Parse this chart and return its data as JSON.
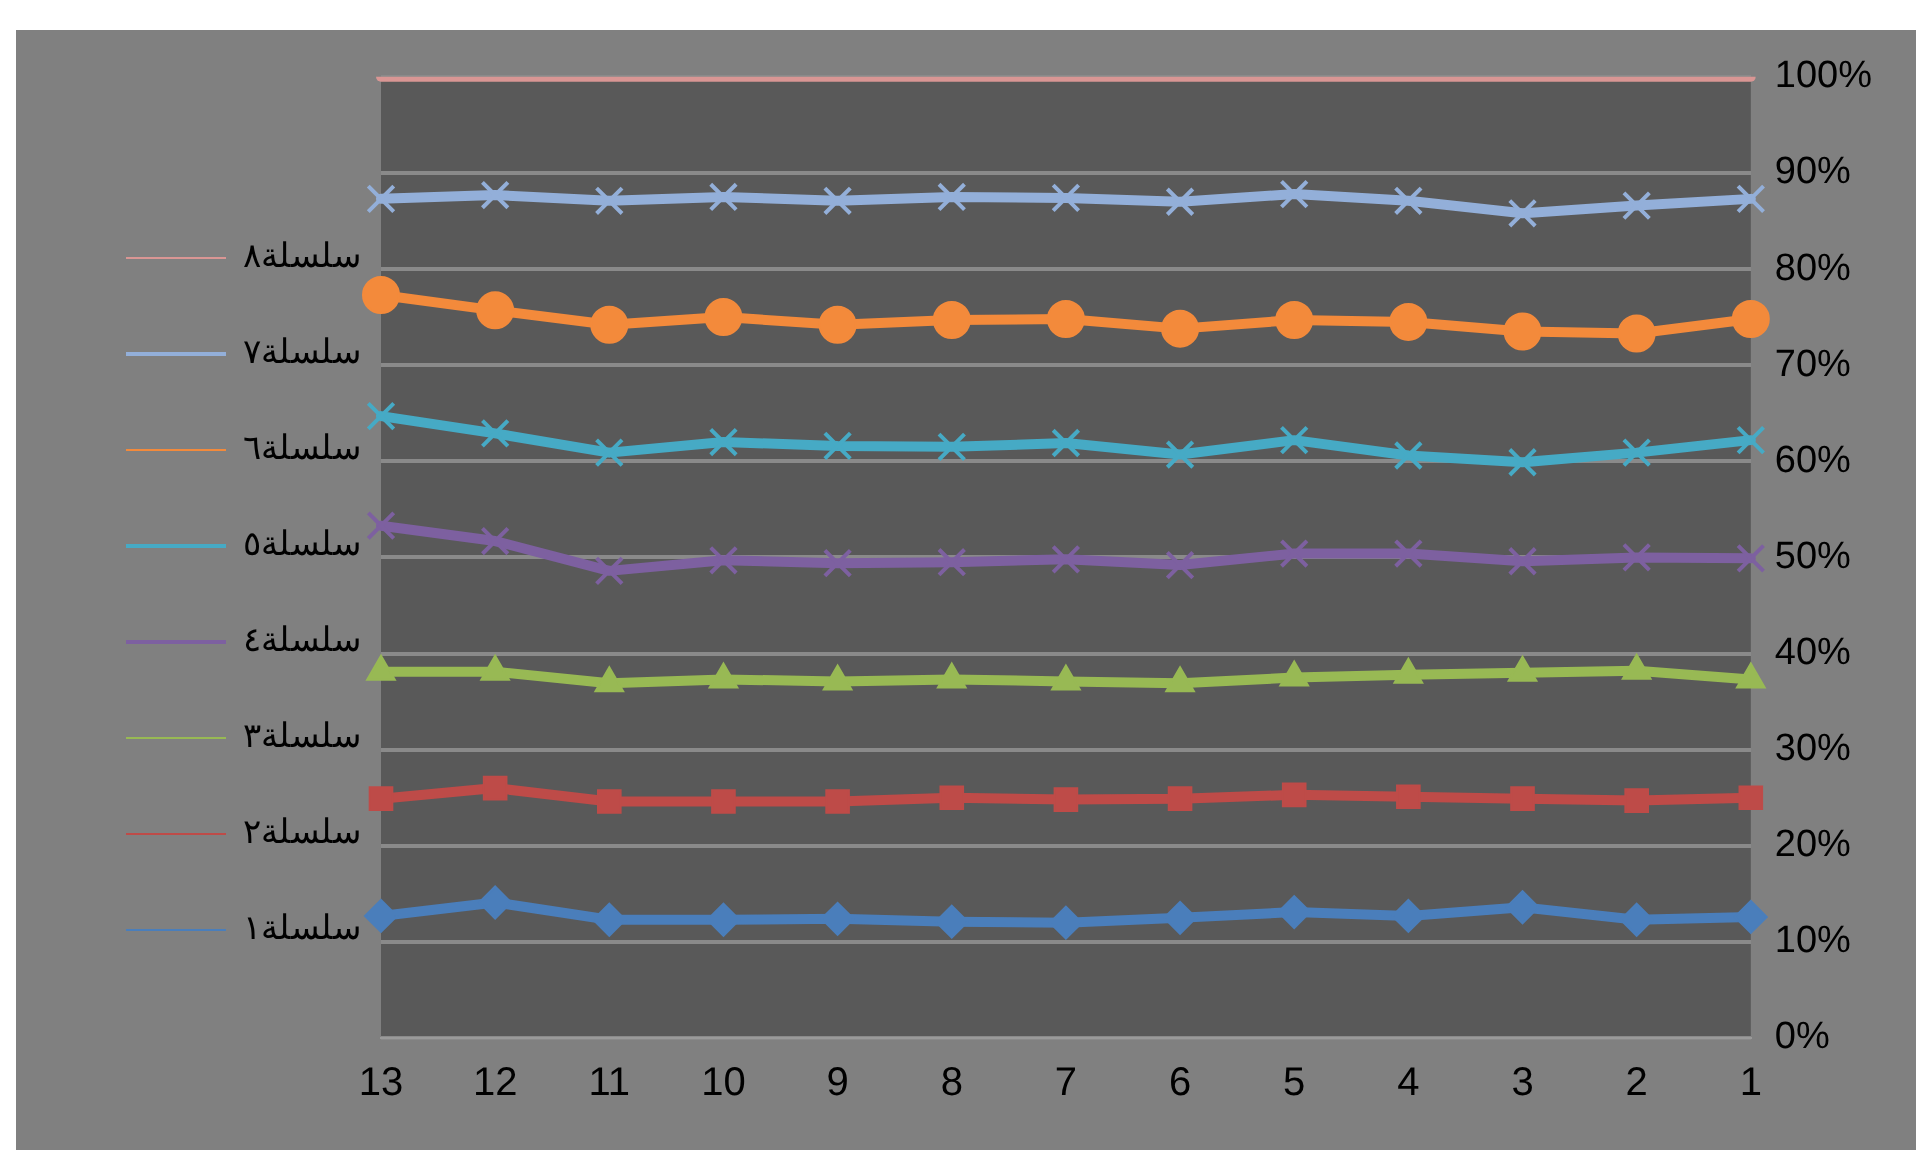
{
  "chart_data": {
    "type": "line",
    "categories": [
      "13",
      "12",
      "11",
      "10",
      "9",
      "8",
      "7",
      "6",
      "5",
      "4",
      "3",
      "2",
      "1"
    ],
    "series": [
      {
        "name": "سلسلة١",
        "color": "#4a7ebb",
        "marker": "diamond",
        "values": [
          12.7,
          14.1,
          12.3,
          12.3,
          12.4,
          12.1,
          12.0,
          12.5,
          13.1,
          12.7,
          13.6,
          12.3,
          12.6
        ]
      },
      {
        "name": "سلسلة٢",
        "color": "#be4b48",
        "marker": "square",
        "values": [
          24.9,
          26.0,
          24.6,
          24.6,
          24.6,
          25.0,
          24.8,
          24.9,
          25.3,
          25.1,
          24.9,
          24.7,
          25.0
        ]
      },
      {
        "name": "سلسلة٣",
        "color": "#98b954",
        "marker": "triangle",
        "values": [
          38.1,
          38.1,
          36.9,
          37.3,
          37.1,
          37.3,
          37.1,
          36.9,
          37.5,
          37.8,
          38.0,
          38.2,
          37.3
        ]
      },
      {
        "name": "سلسلة٤",
        "color": "#7d60a0",
        "marker": "cross",
        "values": [
          53.3,
          51.7,
          48.6,
          49.7,
          49.4,
          49.5,
          49.8,
          49.2,
          50.4,
          50.4,
          49.6,
          50.0,
          49.9
        ]
      },
      {
        "name": "سلسلة٥",
        "color": "#46aac5",
        "marker": "cross",
        "values": [
          64.7,
          62.9,
          60.9,
          62.0,
          61.6,
          61.5,
          61.9,
          60.7,
          62.2,
          60.6,
          59.9,
          60.9,
          62.2
        ]
      },
      {
        "name": "سلسلة٦",
        "color": "#f38a3b",
        "marker": "circle",
        "values": [
          77.3,
          75.7,
          74.2,
          75.0,
          74.2,
          74.7,
          74.8,
          73.8,
          74.7,
          74.5,
          73.5,
          73.3,
          74.8
        ]
      },
      {
        "name": "سلسلة٧",
        "color": "#93afd9",
        "marker": "cross",
        "values": [
          87.3,
          87.7,
          87.1,
          87.5,
          87.1,
          87.5,
          87.4,
          87.0,
          87.8,
          87.1,
          85.8,
          86.6,
          87.3
        ]
      },
      {
        "name": "سلسلة٨",
        "color": "#d99694",
        "marker": "none",
        "values": [
          100,
          100,
          100,
          100,
          100,
          100,
          100,
          100,
          100,
          100,
          100,
          100,
          100
        ]
      }
    ],
    "ylim": [
      0,
      100
    ],
    "yticks": [
      {
        "value": 0,
        "label": "0%"
      },
      {
        "value": 10,
        "label": "10%"
      },
      {
        "value": 20,
        "label": "20%"
      },
      {
        "value": 30,
        "label": "30%"
      },
      {
        "value": 40,
        "label": "40%"
      },
      {
        "value": 50,
        "label": "50%"
      },
      {
        "value": 60,
        "label": "60%"
      },
      {
        "value": 70,
        "label": "70%"
      },
      {
        "value": 80,
        "label": "80%"
      },
      {
        "value": 90,
        "label": "90%"
      },
      {
        "value": 100,
        "label": "100%"
      }
    ],
    "grid": "y",
    "legend": "left",
    "line_style": "solid"
  }
}
